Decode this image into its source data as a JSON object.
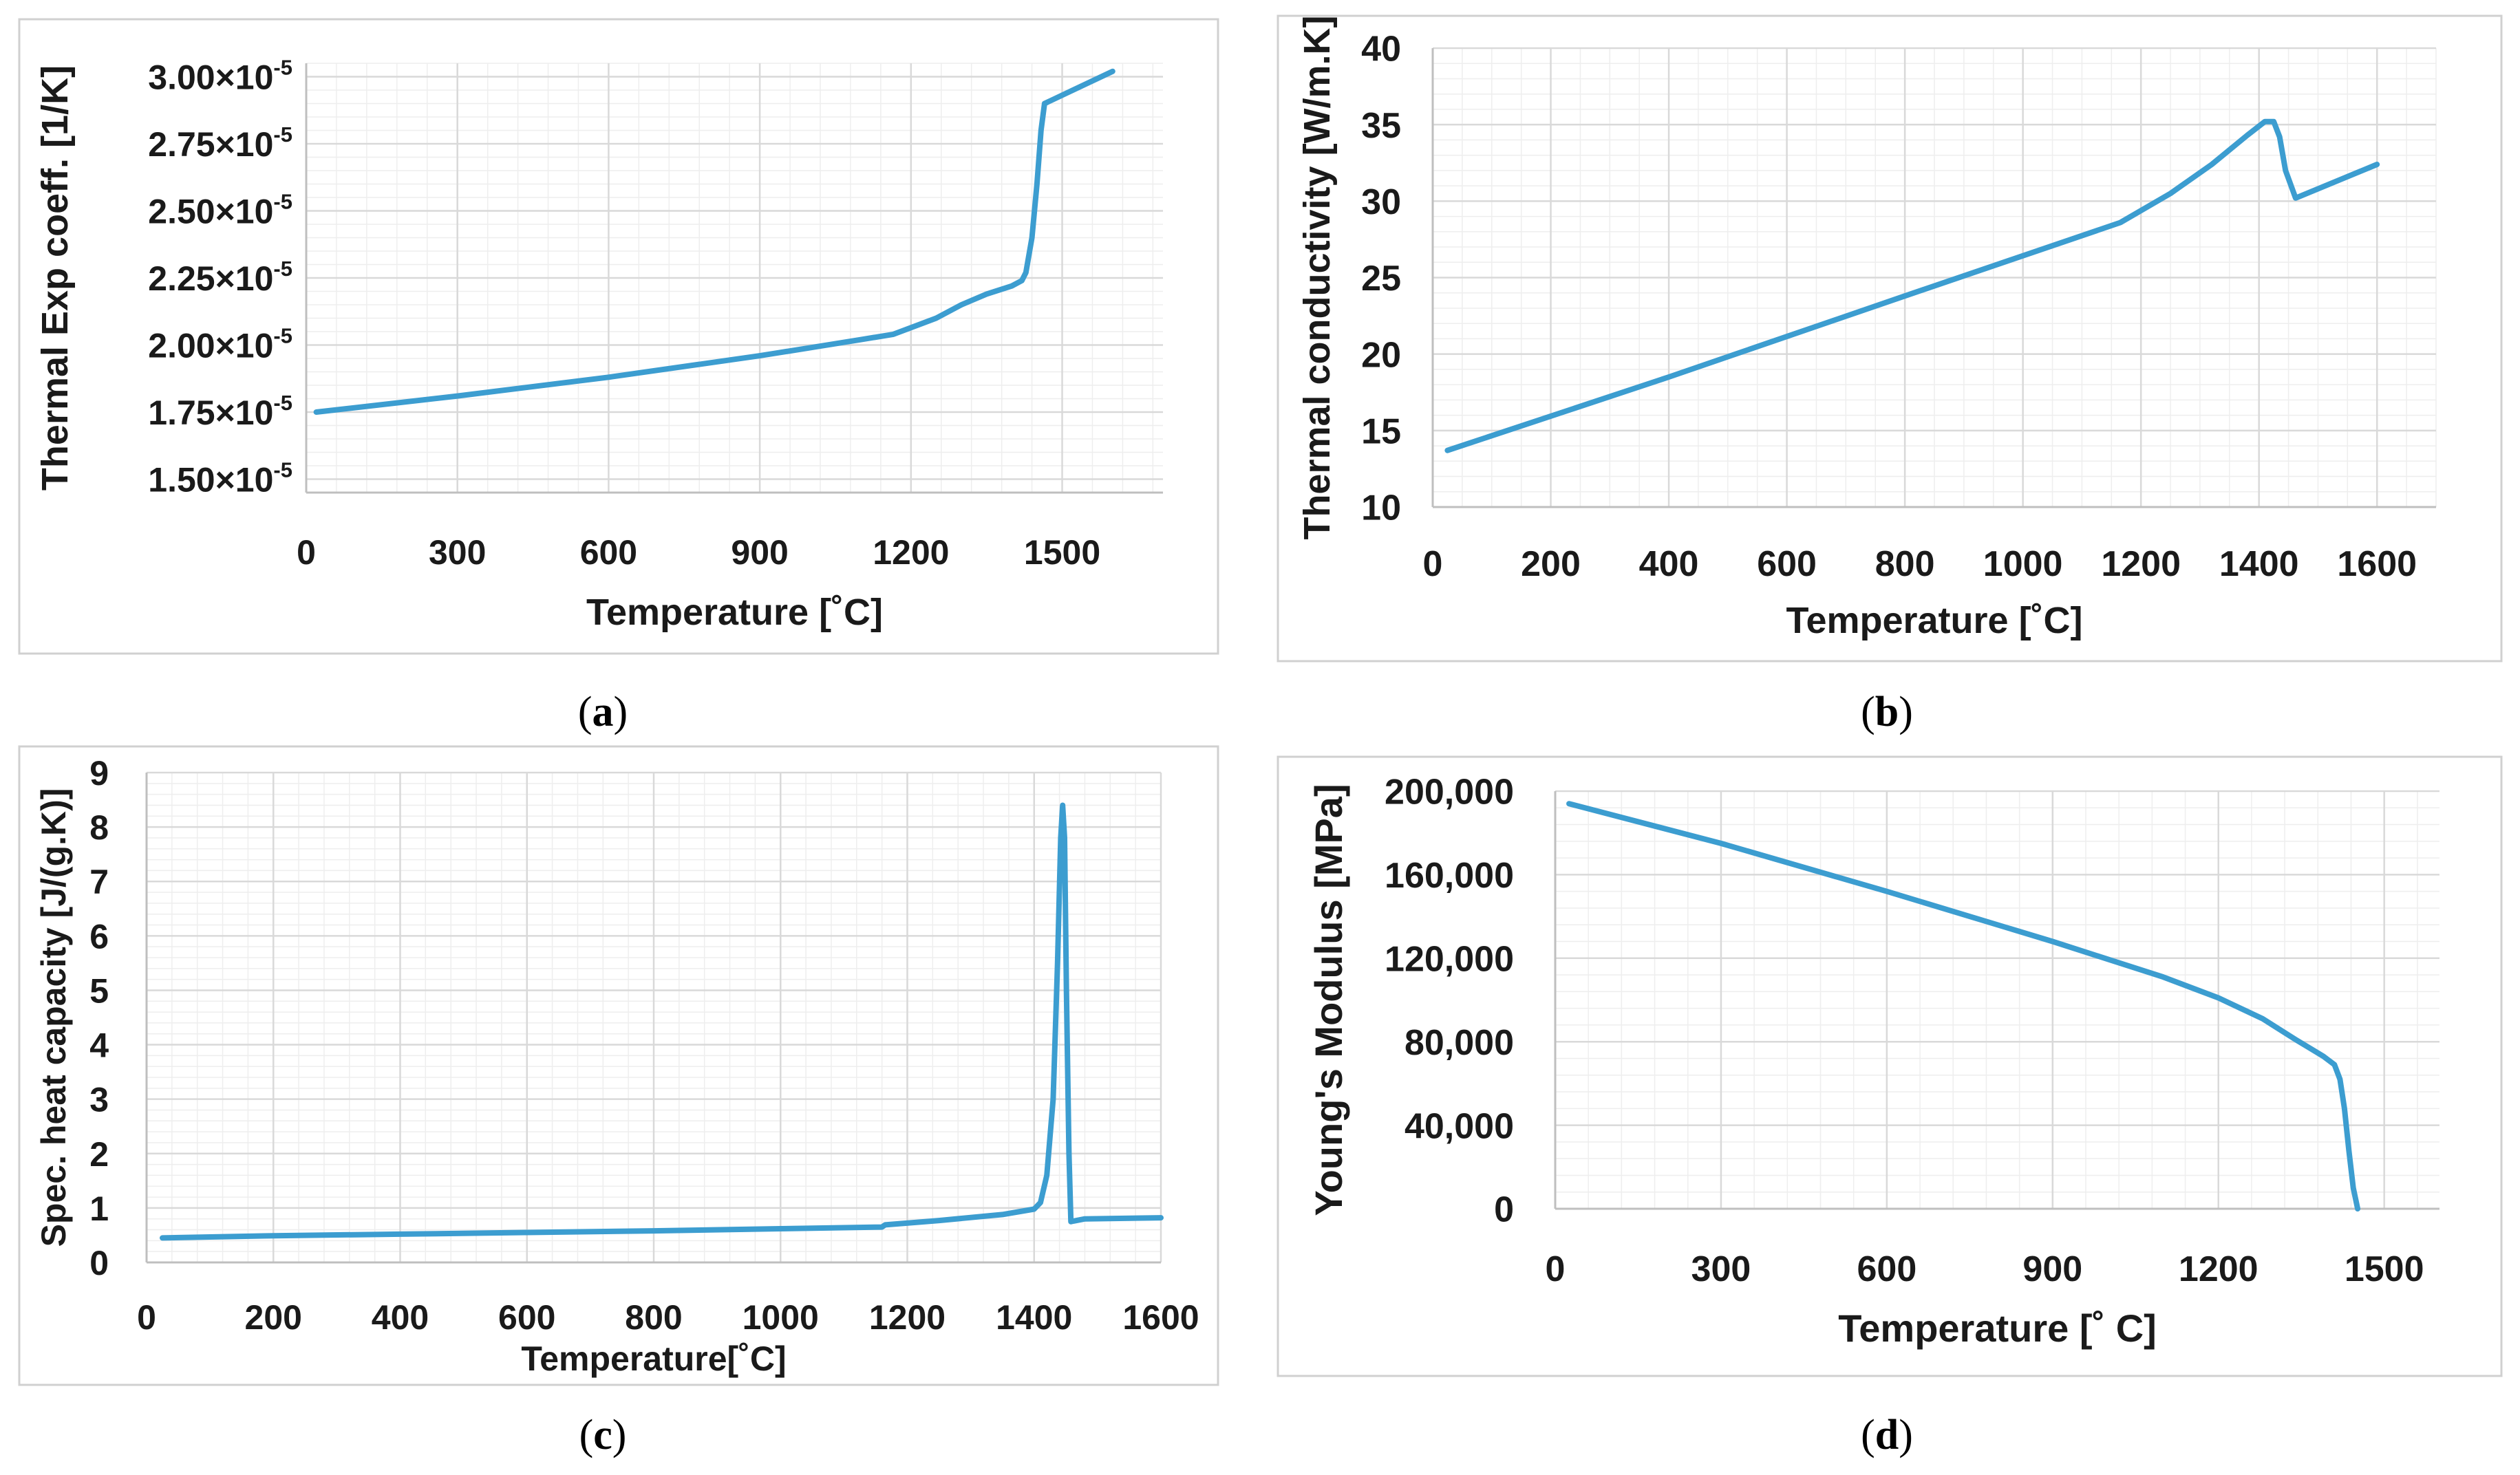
{
  "chart_data": [
    {
      "type": "line",
      "panel": "a",
      "caption": {
        "open": "(",
        "letter": "a",
        "close": ")"
      },
      "xlabel": "Temperature [˚C]",
      "ylabel": "Thermal Exp coeff. [1/K]",
      "xlim": [
        0,
        1700
      ],
      "ylim": [
        1.45e-05,
        3.05e-05
      ],
      "xticks": [
        0,
        300,
        600,
        900,
        1200,
        1500
      ],
      "xtick_labels": [
        "0",
        "300",
        "600",
        "900",
        "1200",
        "1500"
      ],
      "yticks": [
        1.5e-05,
        1.75e-05,
        2e-05,
        2.25e-05,
        2.5e-05,
        2.75e-05,
        3e-05
      ],
      "ytick_labels": [
        {
          "mantissa": "1.50×10",
          "exp": "-5"
        },
        {
          "mantissa": "1.75×10",
          "exp": "-5"
        },
        {
          "mantissa": "2.00×10",
          "exp": "-5"
        },
        {
          "mantissa": "2.25×10",
          "exp": "-5"
        },
        {
          "mantissa": "2.50×10",
          "exp": "-5"
        },
        {
          "mantissa": "2.75×10",
          "exp": "-5"
        },
        {
          "mantissa": "3.00×10",
          "exp": "-5"
        }
      ],
      "series": [
        {
          "name": "Thermal expansion coefficient",
          "color": "#3c9dd0",
          "x": [
            20,
            300,
            600,
            900,
            1000,
            1100,
            1165,
            1250,
            1300,
            1350,
            1400,
            1420,
            1428,
            1440,
            1450,
            1458,
            1465,
            1600
          ],
          "y": [
            1.75e-05,
            1.81e-05,
            1.88e-05,
            1.96e-05,
            1.99e-05,
            2.02e-05,
            2.04e-05,
            2.1e-05,
            2.15e-05,
            2.19e-05,
            2.22e-05,
            2.24e-05,
            2.27e-05,
            2.4e-05,
            2.6e-05,
            2.8e-05,
            2.9e-05,
            3.02e-05
          ]
        }
      ]
    },
    {
      "type": "line",
      "panel": "b",
      "caption": {
        "open": "(",
        "letter": "b",
        "close": ")"
      },
      "xlabel": "Temperature [˚C]",
      "ylabel": "Thermal conductivity [W/m.K]",
      "xlim": [
        0,
        1700
      ],
      "ylim": [
        10,
        40
      ],
      "xticks": [
        0,
        200,
        400,
        600,
        800,
        1000,
        1200,
        1400,
        1600
      ],
      "xtick_labels": [
        "0",
        "200",
        "400",
        "600",
        "800",
        "1000",
        "1200",
        "1400",
        "1600"
      ],
      "yticks": [
        10,
        15,
        20,
        25,
        30,
        35,
        40
      ],
      "ytick_labels": [
        "10",
        "15",
        "20",
        "25",
        "30",
        "35",
        "40"
      ],
      "series": [
        {
          "name": "Thermal conductivity",
          "color": "#3c9dd0",
          "x": [
            25,
            400,
            800,
            1165,
            1250,
            1320,
            1380,
            1410,
            1425,
            1435,
            1445,
            1462,
            1600
          ],
          "y": [
            13.7,
            18.5,
            23.8,
            28.6,
            30.5,
            32.4,
            34.3,
            35.2,
            35.2,
            34.2,
            32.0,
            30.2,
            32.4
          ]
        }
      ]
    },
    {
      "type": "line",
      "panel": "c",
      "caption": {
        "open": "(",
        "letter": "c",
        "close": ")"
      },
      "xlabel": "Temperature[˚C]",
      "ylabel": "Spec. heat capacity [J/(g.K)]",
      "xlim": [
        0,
        1600
      ],
      "ylim": [
        0,
        9
      ],
      "xticks": [
        0,
        200,
        400,
        600,
        800,
        1000,
        1200,
        1400,
        1600
      ],
      "xtick_labels": [
        "0",
        "200",
        "400",
        "600",
        "800",
        "1000",
        "1200",
        "1400",
        "1600"
      ],
      "yticks": [
        0,
        1,
        2,
        3,
        4,
        5,
        6,
        7,
        8,
        9
      ],
      "ytick_labels": [
        "0",
        "1",
        "2",
        "3",
        "4",
        "5",
        "6",
        "7",
        "8",
        "9"
      ],
      "series": [
        {
          "name": "Specific heat capacity",
          "color": "#3c9dd0",
          "x": [
            25,
            200,
            400,
            600,
            800,
            1000,
            1160,
            1165,
            1250,
            1350,
            1400,
            1410,
            1420,
            1430,
            1437,
            1442,
            1445,
            1448,
            1451,
            1455,
            1458,
            1462,
            1480,
            1600
          ],
          "y": [
            0.45,
            0.49,
            0.52,
            0.55,
            0.58,
            0.62,
            0.65,
            0.69,
            0.77,
            0.88,
            0.98,
            1.1,
            1.6,
            3.0,
            5.5,
            7.8,
            8.4,
            7.8,
            5.0,
            2.0,
            0.75,
            0.76,
            0.8,
            0.82
          ]
        }
      ]
    },
    {
      "type": "line",
      "panel": "d",
      "caption": {
        "open": "(",
        "letter": "d",
        "close": ")"
      },
      "xlabel": "Temperature [˚ C]",
      "ylabel": "Young's Modulus [MPa]",
      "xlim": [
        0,
        1600
      ],
      "ylim": [
        0,
        200000
      ],
      "xticks": [
        0,
        300,
        600,
        900,
        1200,
        1500
      ],
      "xtick_labels": [
        "0",
        "300",
        "600",
        "900",
        "1200",
        "1500"
      ],
      "yticks": [
        0,
        40000,
        80000,
        120000,
        160000,
        200000
      ],
      "ytick_labels": [
        "0",
        "40,000",
        "80,000",
        "120,000",
        "160,000",
        "200,000"
      ],
      "series": [
        {
          "name": "Young's modulus",
          "color": "#3c9dd0",
          "x": [
            25,
            300,
            600,
            900,
            1100,
            1200,
            1280,
            1340,
            1390,
            1410,
            1420,
            1428,
            1436,
            1444,
            1452
          ],
          "y": [
            194000,
            175000,
            152000,
            128000,
            111000,
            101000,
            91000,
            81000,
            73000,
            69000,
            62000,
            48000,
            28000,
            10000,
            0
          ]
        }
      ]
    }
  ]
}
